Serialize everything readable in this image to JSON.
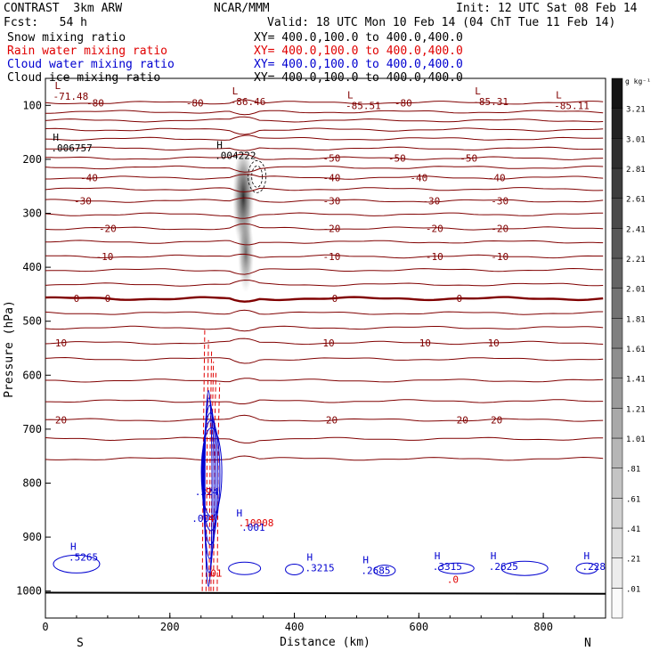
{
  "header": {
    "title": "CONTRAST  3km ARW",
    "fcst": "Fcst:   54 h",
    "center": "NCAR/MMM",
    "init": "Init: 12 UTC Sat 08 Feb 14",
    "valid": "Valid: 18 UTC Mon 10 Feb 14 (04 ChT Tue 11 Feb 14)"
  },
  "fields": [
    {
      "name": "Snow mixing ratio",
      "xy": "XY= 400.0,100.0 to 400.0,400.0",
      "color": "#000000"
    },
    {
      "name": "Rain water mixing ratio",
      "xy": "XY= 400.0,100.0 to 400.0,400.0",
      "color": "#e00000"
    },
    {
      "name": "Cloud water mixing ratio",
      "xy": "XY= 400.0,100.0 to 400.0,400.0",
      "color": "#0000d0"
    },
    {
      "name": "Cloud ice mixing ratio",
      "xy": "XY= 400.0,100.0 to 400.0,400.0",
      "color": "#000000"
    }
  ],
  "chart_data": {
    "type": "contour",
    "xlabel": "Distance (km)",
    "ylabel": "Pressure (hPa)",
    "x_ticks": [
      0,
      200,
      400,
      600,
      800
    ],
    "y_ticks": [
      100,
      200,
      300,
      400,
      500,
      600,
      700,
      800,
      900,
      1000
    ],
    "xlim": [
      0,
      900
    ],
    "ylim": [
      1050,
      50
    ],
    "end_labels": {
      "left": "S",
      "right": "N"
    },
    "colorbar": {
      "unit": "g kg⁻¹",
      "levels": [
        ".01",
        ".21",
        ".41",
        ".61",
        ".81",
        "1.01",
        "1.21",
        "1.41",
        "1.61",
        "1.81",
        "2.01",
        "2.21",
        "2.41",
        "2.61",
        "2.81",
        "3.01",
        "3.21"
      ]
    },
    "temperature_contours": {
      "color": "#800000",
      "lines": [
        {
          "p": 95,
          "labels": [
            {
              "x": 80,
              "t": "-80"
            },
            {
              "x": 240,
              "t": "-80"
            },
            {
              "x": 575,
              "t": "-80"
            }
          ]
        },
        {
          "p": 112
        },
        {
          "p": 128
        },
        {
          "p": 145
        },
        {
          "p": 162
        },
        {
          "p": 180
        },
        {
          "p": 198,
          "labels": [
            {
              "x": 460,
              "t": "-50"
            },
            {
              "x": 565,
              "t": "-50"
            },
            {
              "x": 680,
              "t": "-50"
            }
          ]
        },
        {
          "p": 215
        },
        {
          "p": 234,
          "labels": [
            {
              "x": 70,
              "t": "-40"
            },
            {
              "x": 460,
              "t": "-40"
            },
            {
              "x": 600,
              "t": "-40"
            },
            {
              "x": 725,
              "t": "-40"
            }
          ]
        },
        {
          "p": 255
        },
        {
          "p": 277,
          "labels": [
            {
              "x": 60,
              "t": "-30"
            },
            {
              "x": 460,
              "t": "-30"
            },
            {
              "x": 620,
              "t": "-30"
            },
            {
              "x": 730,
              "t": "-30"
            }
          ]
        },
        {
          "p": 302
        },
        {
          "p": 328,
          "labels": [
            {
              "x": 100,
              "t": "-20"
            },
            {
              "x": 460,
              "t": "-20"
            },
            {
              "x": 625,
              "t": "-20"
            },
            {
              "x": 730,
              "t": "-20"
            }
          ]
        },
        {
          "p": 353
        },
        {
          "p": 380,
          "labels": [
            {
              "x": 95,
              "t": "-10"
            },
            {
              "x": 460,
              "t": "-10"
            },
            {
              "x": 625,
              "t": "-10"
            },
            {
              "x": 730,
              "t": "-10"
            }
          ]
        },
        {
          "p": 405
        },
        {
          "p": 432
        },
        {
          "p": 458,
          "heavy": true,
          "labels": [
            {
              "x": 50,
              "t": "0"
            },
            {
              "x": 100,
              "t": "0"
            },
            {
              "x": 465,
              "t": "0"
            },
            {
              "x": 665,
              "t": "0"
            }
          ]
        },
        {
          "p": 485
        },
        {
          "p": 512
        },
        {
          "p": 540,
          "labels": [
            {
              "x": 25,
              "t": "10"
            },
            {
              "x": 455,
              "t": "10"
            },
            {
              "x": 610,
              "t": "10"
            },
            {
              "x": 720,
              "t": "10"
            }
          ]
        },
        {
          "p": 570
        },
        {
          "p": 610
        },
        {
          "p": 648
        },
        {
          "p": 683,
          "labels": [
            {
              "x": 25,
              "t": "20"
            },
            {
              "x": 460,
              "t": "20"
            },
            {
              "x": 670,
              "t": "20"
            },
            {
              "x": 725,
              "t": "20"
            }
          ]
        },
        {
          "p": 718
        },
        {
          "p": 755
        }
      ]
    },
    "extrema": [
      {
        "type": "L",
        "x": 15,
        "p": 86,
        "value": "-71.48"
      },
      {
        "type": "L",
        "x": 300,
        "p": 96,
        "value": "-86.46"
      },
      {
        "type": "L",
        "x": 485,
        "p": 104,
        "value": "-85.51"
      },
      {
        "type": "L",
        "x": 690,
        "p": 96,
        "value": "-85.31"
      },
      {
        "type": "L",
        "x": 820,
        "p": 104,
        "value": "-85.11"
      },
      {
        "type": "H",
        "x": 12,
        "p": 182,
        "value": ".006757"
      },
      {
        "type": "H",
        "x": 275,
        "p": 196,
        "value": ".004222"
      },
      {
        "type": "H",
        "x": 40,
        "p": 940,
        "value": ".5265",
        "color": "#0000d0"
      },
      {
        "type": "H",
        "x": 420,
        "p": 960,
        "value": ".3215",
        "color": "#0000d0"
      },
      {
        "type": "H",
        "x": 510,
        "p": 965,
        "value": ".2685",
        "color": "#0000d0"
      },
      {
        "type": "H",
        "x": 625,
        "p": 958,
        "value": ".3315",
        "color": "#0000d0"
      },
      {
        "type": "H",
        "x": 715,
        "p": 958,
        "value": ".2625",
        "color": "#0000d0"
      },
      {
        "type": "H",
        "x": 865,
        "p": 958,
        "value": ".228",
        "color": "#0000d0"
      }
    ],
    "annotations": [
      {
        "x": 240,
        "p": 822,
        "t": ".324",
        "color": "#0000d0"
      },
      {
        "x": 257,
        "p": 822,
        "t": "9",
        "color": "#e00000"
      },
      {
        "x": 235,
        "p": 872,
        "t": ".00",
        "color": "#0000d0"
      },
      {
        "x": 262,
        "p": 872,
        "t": "4",
        "color": "#e00000"
      },
      {
        "x": 307,
        "p": 862,
        "t": "H",
        "color": "#0000d0"
      },
      {
        "x": 310,
        "p": 880,
        "t": ".10008",
        "color": "#e00000"
      },
      {
        "x": 315,
        "p": 888,
        "t": ".001",
        "color": "#0000d0"
      },
      {
        "x": 265,
        "p": 973,
        "t": "01",
        "color": "#e00000"
      },
      {
        "x": 645,
        "p": 985,
        "t": ".0",
        "color": "#e00000"
      }
    ]
  }
}
